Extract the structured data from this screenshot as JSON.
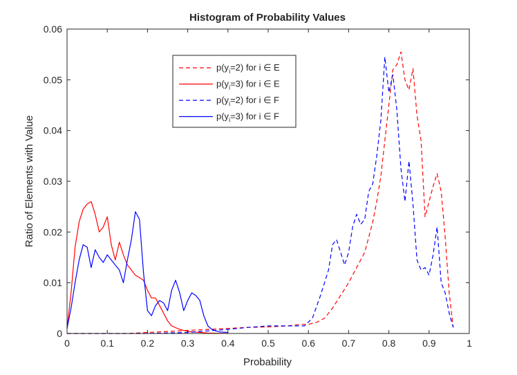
{
  "chart_data": {
    "type": "line",
    "title": "Histogram of Probability Values",
    "xlabel": "Probability",
    "ylabel": "Ratio of Elements with Value",
    "xlim": [
      0,
      1
    ],
    "ylim": [
      0,
      0.06
    ],
    "xticks": [
      "0",
      "0.1",
      "0.2",
      "0.3",
      "0.4",
      "0.5",
      "0.6",
      "0.7",
      "0.8",
      "0.9",
      "1"
    ],
    "yticks": [
      "0",
      "0.01",
      "0.02",
      "0.03",
      "0.04",
      "0.05",
      "0.06"
    ],
    "grid": false,
    "legend_position": "top-center",
    "series": [
      {
        "name": "p(yi=2) for i ∈ E",
        "legend": {
          "pre": "p(y",
          "sub": "i",
          "post": "=2) for i ∈ E"
        },
        "color": "#ff0000",
        "dash": "dashed",
        "x": [
          0.0,
          0.05,
          0.1,
          0.15,
          0.2,
          0.25,
          0.3,
          0.35,
          0.4,
          0.45,
          0.5,
          0.55,
          0.58,
          0.6,
          0.62,
          0.64,
          0.66,
          0.68,
          0.7,
          0.72,
          0.73,
          0.74,
          0.75,
          0.76,
          0.77,
          0.78,
          0.79,
          0.8,
          0.81,
          0.82,
          0.83,
          0.84,
          0.85,
          0.86,
          0.87,
          0.88,
          0.89,
          0.9,
          0.91,
          0.92,
          0.93,
          0.94,
          0.95,
          0.96
        ],
        "y": [
          0.0,
          0.0,
          0.0,
          0.0,
          0.0002,
          0.0004,
          0.0006,
          0.0008,
          0.001,
          0.0012,
          0.0013,
          0.0015,
          0.0018,
          0.0018,
          0.0022,
          0.003,
          0.005,
          0.0075,
          0.01,
          0.013,
          0.0145,
          0.016,
          0.019,
          0.022,
          0.026,
          0.031,
          0.038,
          0.045,
          0.052,
          0.053,
          0.0555,
          0.05,
          0.048,
          0.0522,
          0.043,
          0.038,
          0.023,
          0.026,
          0.029,
          0.0315,
          0.028,
          0.019,
          0.008,
          0.0012
        ]
      },
      {
        "name": "p(yi=3) for i ∈ E",
        "legend": {
          "pre": "p(y",
          "sub": "i",
          "post": "=3) for i ∈ E"
        },
        "color": "#ff0000",
        "dash": "solid",
        "x": [
          0.0,
          0.01,
          0.02,
          0.03,
          0.04,
          0.05,
          0.06,
          0.07,
          0.08,
          0.09,
          0.1,
          0.11,
          0.12,
          0.13,
          0.14,
          0.15,
          0.16,
          0.17,
          0.18,
          0.19,
          0.2,
          0.21,
          0.22,
          0.23,
          0.24,
          0.25,
          0.26,
          0.28,
          0.3,
          0.35,
          0.4
        ],
        "y": [
          0.001,
          0.008,
          0.017,
          0.022,
          0.0245,
          0.0255,
          0.026,
          0.0235,
          0.02,
          0.021,
          0.023,
          0.0175,
          0.0145,
          0.018,
          0.0155,
          0.0135,
          0.0125,
          0.0115,
          0.011,
          0.0105,
          0.0085,
          0.007,
          0.007,
          0.0055,
          0.004,
          0.0025,
          0.0015,
          0.0008,
          0.0004,
          0.0001,
          0.0
        ]
      },
      {
        "name": "p(yi=2) for i ∈ F",
        "legend": {
          "pre": "p(y",
          "sub": "i",
          "post": "=2) for i ∈ F"
        },
        "color": "#0000ff",
        "dash": "dashed",
        "x": [
          0.0,
          0.1,
          0.2,
          0.3,
          0.35,
          0.4,
          0.45,
          0.5,
          0.55,
          0.59,
          0.61,
          0.63,
          0.65,
          0.66,
          0.67,
          0.68,
          0.69,
          0.7,
          0.71,
          0.72,
          0.73,
          0.74,
          0.75,
          0.76,
          0.77,
          0.78,
          0.79,
          0.8,
          0.81,
          0.82,
          0.83,
          0.84,
          0.85,
          0.86,
          0.87,
          0.88,
          0.89,
          0.9,
          0.91,
          0.92,
          0.93,
          0.94,
          0.95,
          0.96
        ],
        "y": [
          0.0,
          0.0,
          0.0,
          0.0002,
          0.0005,
          0.0008,
          0.0012,
          0.0015,
          0.0015,
          0.0015,
          0.003,
          0.0075,
          0.0125,
          0.0175,
          0.0185,
          0.016,
          0.0135,
          0.016,
          0.021,
          0.0235,
          0.0215,
          0.0225,
          0.028,
          0.0295,
          0.035,
          0.042,
          0.0545,
          0.0475,
          0.051,
          0.044,
          0.0325,
          0.026,
          0.034,
          0.0255,
          0.0145,
          0.0125,
          0.013,
          0.0115,
          0.0155,
          0.021,
          0.01,
          0.008,
          0.004,
          0.0012
        ]
      },
      {
        "name": "p(yi=3) for i ∈ F",
        "legend": {
          "pre": "p(y",
          "sub": "i",
          "post": "=3) for i ∈ F"
        },
        "color": "#0000ff",
        "dash": "solid",
        "x": [
          0.0,
          0.01,
          0.02,
          0.03,
          0.04,
          0.05,
          0.06,
          0.07,
          0.08,
          0.09,
          0.1,
          0.11,
          0.12,
          0.13,
          0.14,
          0.15,
          0.16,
          0.17,
          0.18,
          0.19,
          0.2,
          0.21,
          0.22,
          0.23,
          0.24,
          0.25,
          0.26,
          0.27,
          0.28,
          0.29,
          0.3,
          0.31,
          0.32,
          0.33,
          0.34,
          0.35,
          0.36,
          0.37,
          0.38,
          0.4
        ],
        "y": [
          0.001,
          0.005,
          0.01,
          0.0145,
          0.0175,
          0.017,
          0.013,
          0.0165,
          0.015,
          0.014,
          0.0155,
          0.0145,
          0.0135,
          0.0125,
          0.01,
          0.0145,
          0.0185,
          0.024,
          0.0225,
          0.012,
          0.0045,
          0.0035,
          0.0055,
          0.0065,
          0.006,
          0.0045,
          0.0085,
          0.0105,
          0.008,
          0.0045,
          0.0065,
          0.008,
          0.0075,
          0.0065,
          0.0035,
          0.0015,
          0.0008,
          0.0005,
          0.0003,
          0.0002
        ]
      }
    ]
  }
}
